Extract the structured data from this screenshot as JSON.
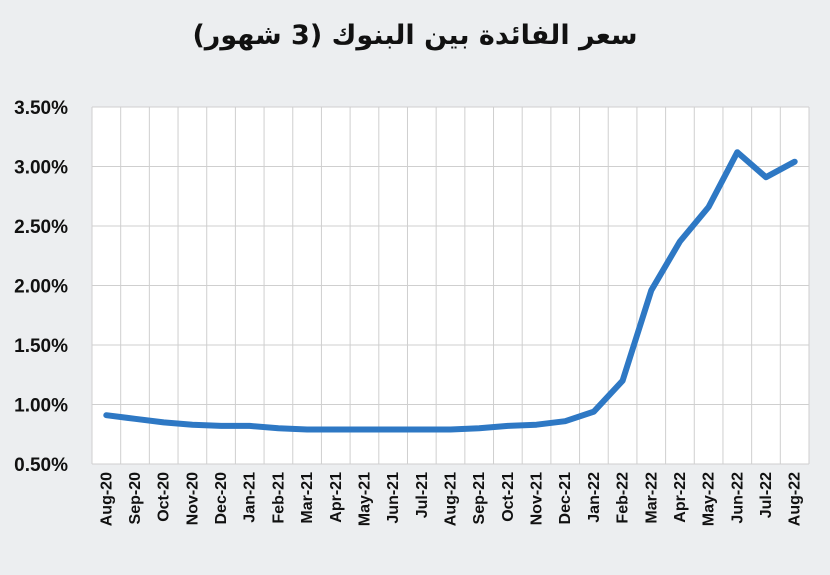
{
  "chart_data": {
    "type": "line",
    "title": "سعر الفائدة بين البنوك (3 شهور)",
    "xlabel": "",
    "ylabel": "",
    "ylim": [
      0.5,
      3.5
    ],
    "yticks": [
      "0.50%",
      "1.00%",
      "1.50%",
      "2.00%",
      "2.50%",
      "3.00%",
      "3.50%"
    ],
    "grid": true,
    "legend": "none",
    "categories": [
      "Aug-20",
      "Sep-20",
      "Oct-20",
      "Nov-20",
      "Dec-20",
      "Jan-21",
      "Feb-21",
      "Mar-21",
      "Apr-21",
      "May-21",
      "Jun-21",
      "Jul-21",
      "Aug-21",
      "Sep-21",
      "Oct-21",
      "Nov-21",
      "Dec-21",
      "Jan-22",
      "Feb-22",
      "Mar-22",
      "Apr-22",
      "May-22",
      "Jun-22",
      "Jul-22",
      "Aug-22"
    ],
    "series": [
      {
        "color": "#2e78c4",
        "values": [
          0.91,
          0.88,
          0.85,
          0.83,
          0.82,
          0.82,
          0.8,
          0.79,
          0.79,
          0.79,
          0.79,
          0.79,
          0.79,
          0.8,
          0.82,
          0.83,
          0.86,
          0.94,
          1.2,
          1.96,
          2.37,
          2.66,
          3.12,
          2.91,
          3.04
        ]
      }
    ]
  }
}
